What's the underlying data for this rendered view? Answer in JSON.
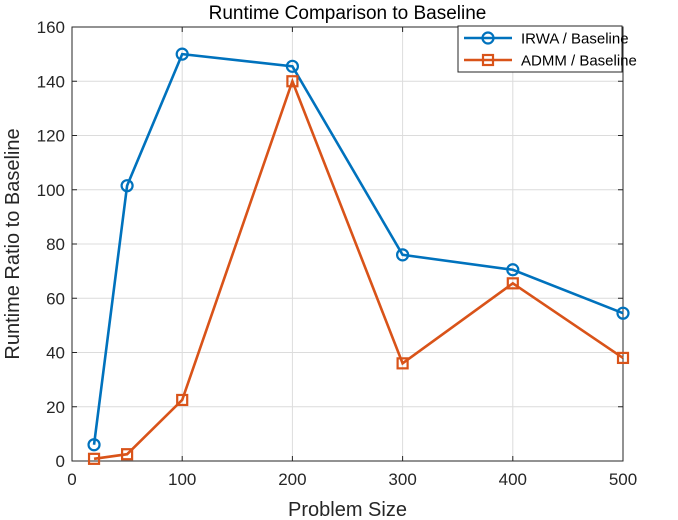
{
  "chart_data": {
    "type": "line",
    "title": "Runtime Comparison to Baseline",
    "xlabel": "Problem Size",
    "ylabel": "Runtime Ratio to Baseline",
    "x": [
      20,
      50,
      100,
      200,
      300,
      400,
      500
    ],
    "xlim": [
      0,
      500
    ],
    "ylim": [
      0,
      160
    ],
    "xticks": [
      0,
      100,
      200,
      300,
      400,
      500
    ],
    "yticks": [
      0,
      20,
      40,
      60,
      80,
      100,
      120,
      140,
      160
    ],
    "grid": true,
    "legend": "top-right",
    "series": [
      {
        "name": "IRWA / Baseline",
        "marker": "circle",
        "color": "#0072bd",
        "values": [
          6,
          101.5,
          150,
          145.5,
          76,
          70.5,
          54.5
        ]
      },
      {
        "name": "ADMM / Baseline",
        "marker": "square",
        "color": "#d95319",
        "values": [
          0.8,
          2.5,
          22.5,
          140,
          36,
          65.5,
          38
        ]
      }
    ]
  }
}
